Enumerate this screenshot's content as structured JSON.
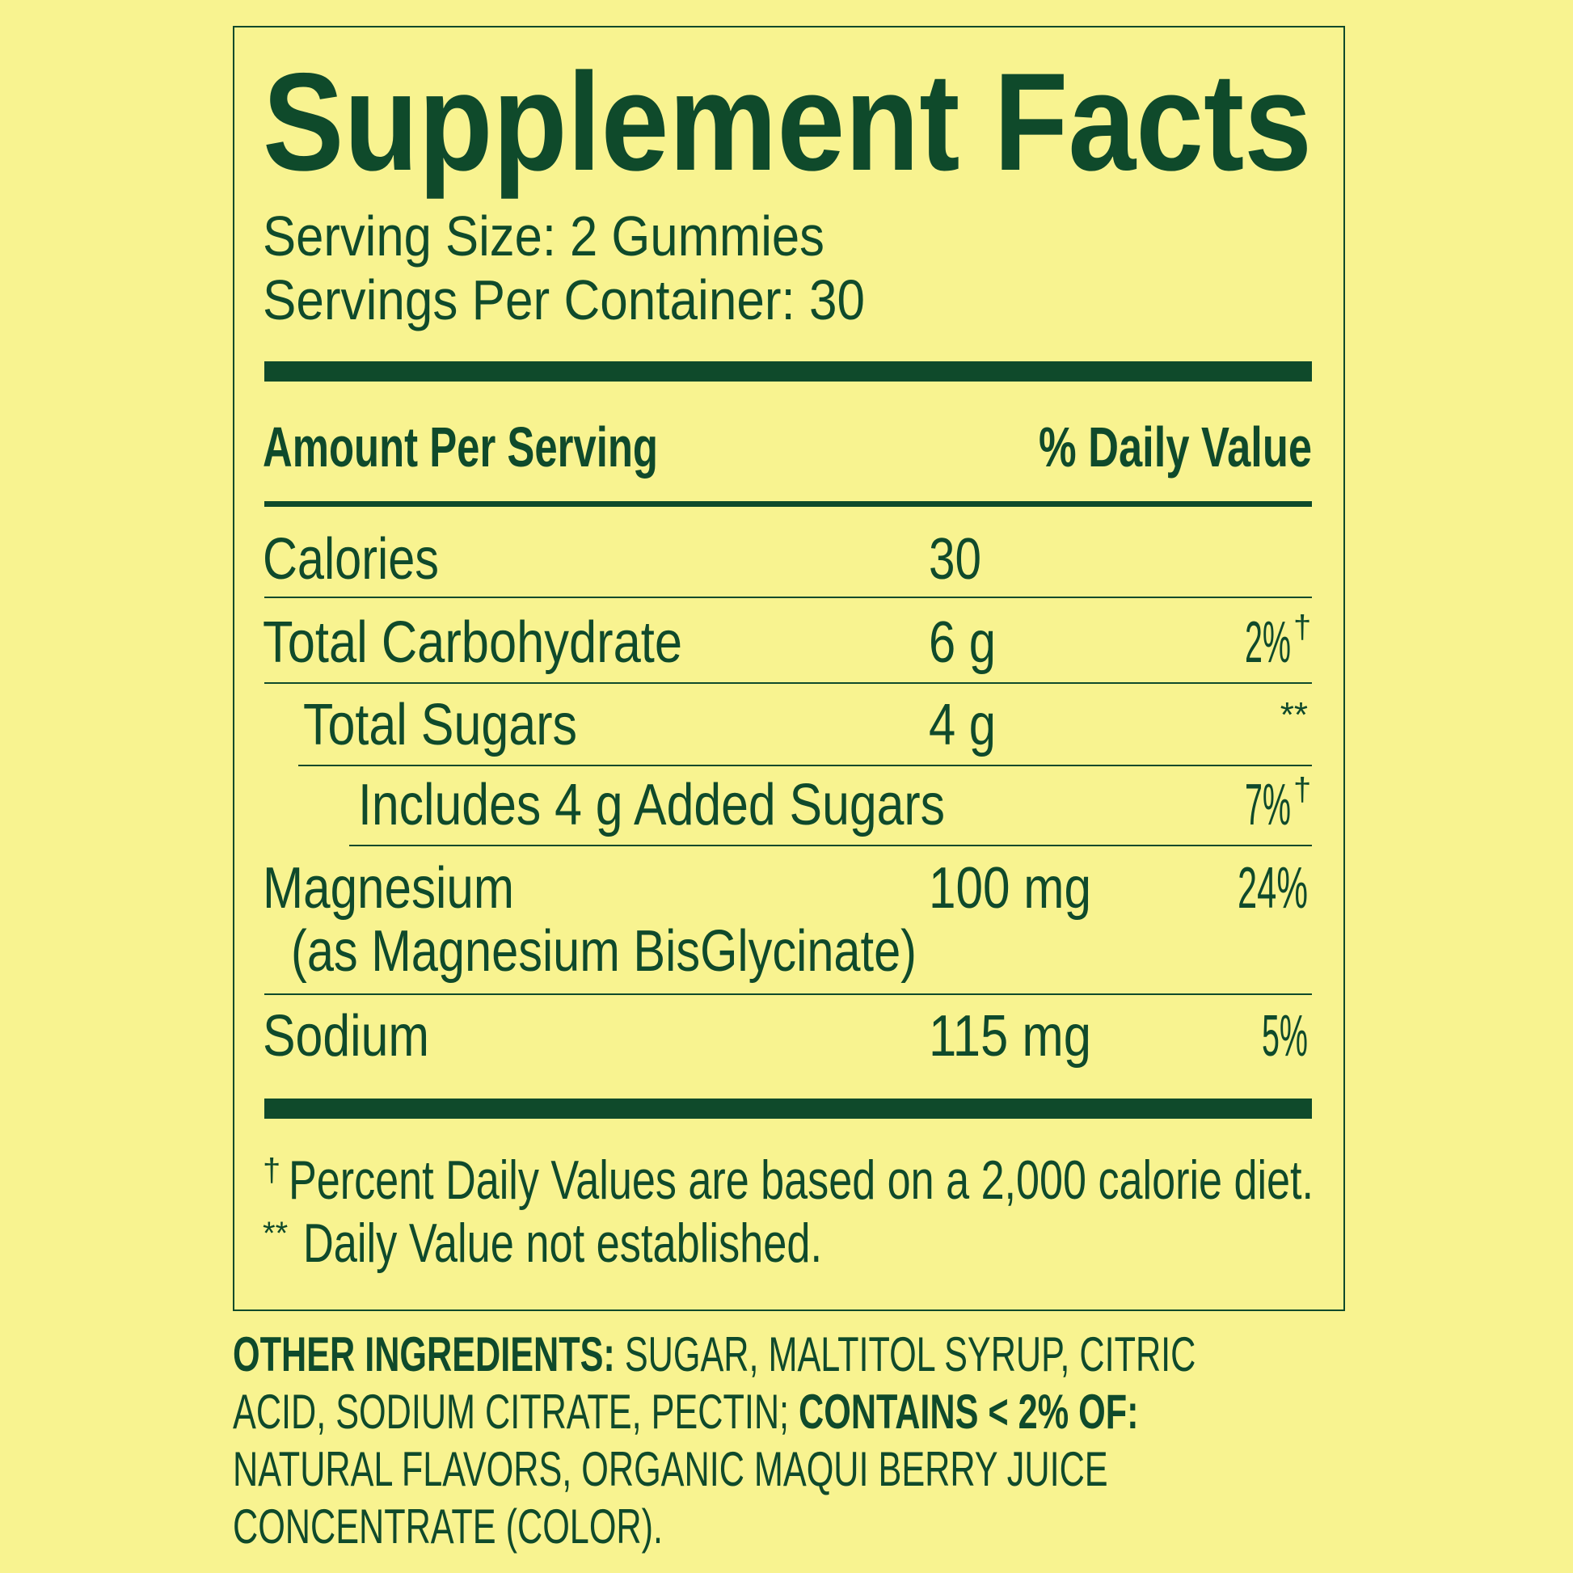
{
  "title": "Supplement Facts",
  "serving_size": "Serving Size: 2 Gummies",
  "servings_per_container": "Servings Per Container: 30",
  "header": {
    "amount": "Amount Per Serving",
    "daily_value": "% Daily Value"
  },
  "rows": [
    {
      "name": "Calories",
      "amount": "30"
    },
    {
      "name": "Total Carbohydrate",
      "amount": "6 g",
      "dv": "2%",
      "mark": "†"
    },
    {
      "name": "Total Sugars",
      "amount": "4 g",
      "dv": "**"
    },
    {
      "name": "Includes 4 g Added Sugars",
      "dv": "7%",
      "mark": "†"
    },
    {
      "name": "Magnesium",
      "detail": "(as Magnesium BisGlycinate)",
      "amount": "100 mg",
      "dv": "24%"
    },
    {
      "name": "Sodium",
      "amount": "115 mg",
      "dv": "5%"
    }
  ],
  "footnotes": [
    {
      "mark": "†",
      "text": "Percent Daily Values are based on a 2,000 calorie diet."
    },
    {
      "mark": "**",
      "text": "Daily Value not established."
    }
  ],
  "ingredients": [
    {
      "text": "OTHER INGREDIENTS:",
      "bold": true
    },
    {
      "text": "SUGAR, MALTITOL SYRUP, CITRIC ACID, SODIUM CITRATE, PECTIN;",
      "bold": false
    },
    {
      "text": "CONTAINS < 2% OF:",
      "bold": true
    },
    {
      "text": "NATURAL FLAVORS, ORGANIC MAQUI BERRY JUICE CONCENTRATE (COLOR).",
      "bold": false
    }
  ]
}
